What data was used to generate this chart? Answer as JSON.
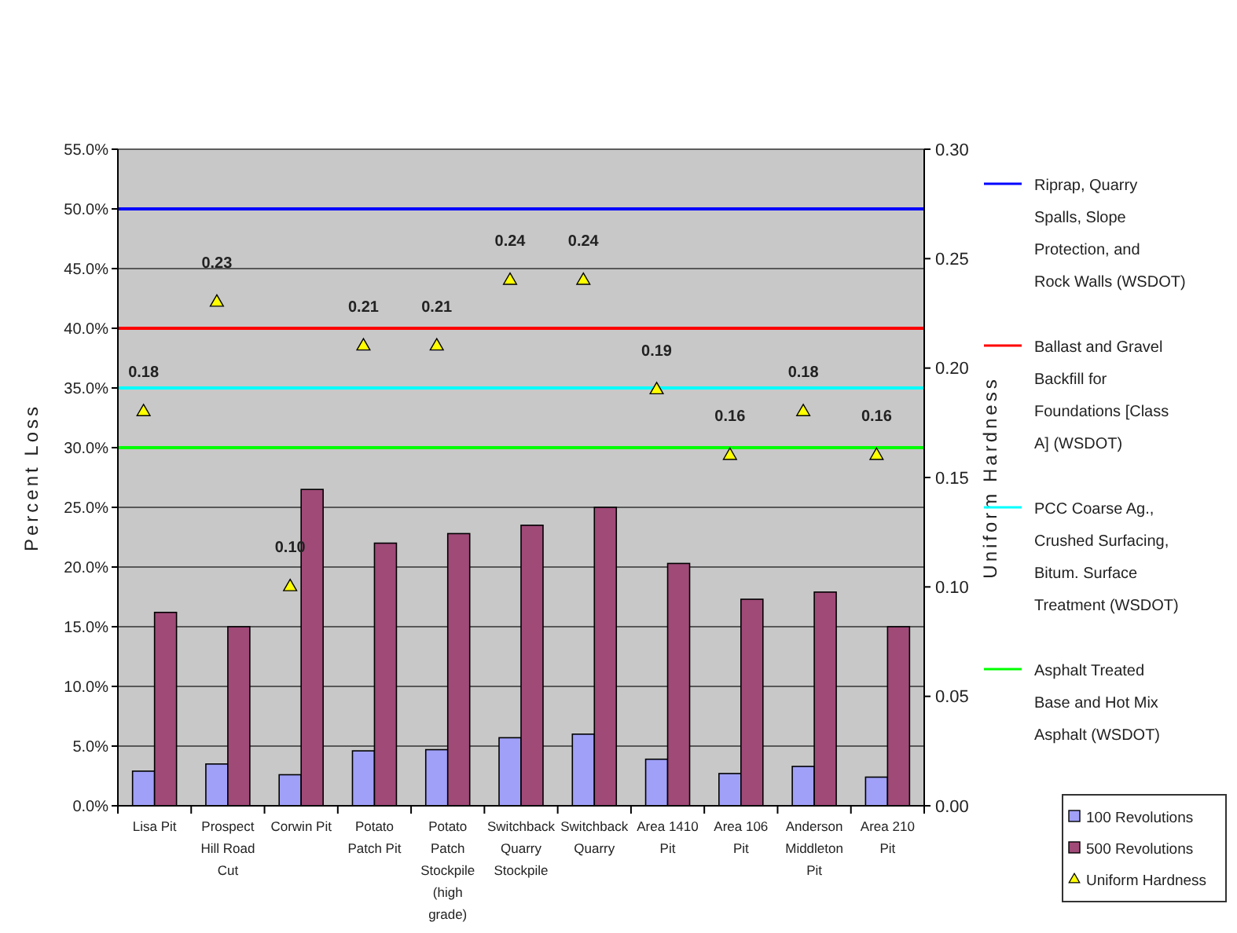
{
  "chart_data": {
    "type": "bar",
    "ylabel": "Percent Loss",
    "y2label": "Uniform Hardness",
    "categories": [
      "Lisa Pit",
      "Prospect Hill Road Cut",
      "Corwin Pit",
      "Potato Patch Pit",
      "Potato Patch Stockpile (high grade)",
      "Switchback Quarry Stockpile",
      "Switchback Quarry",
      "Area 1410 Pit",
      "Area 106 Pit",
      "Anderson Middleton Pit",
      "Area 210 Pit"
    ],
    "series": [
      {
        "name": "100 Revolutions",
        "color": "#a0a0f8",
        "values": [
          2.9,
          3.5,
          2.6,
          4.6,
          4.7,
          5.7,
          6.0,
          3.9,
          2.7,
          3.3,
          2.4
        ]
      },
      {
        "name": "500 Revolutions",
        "color": "#a04a78",
        "values": [
          16.2,
          15.0,
          26.5,
          22.0,
          22.8,
          23.5,
          25.0,
          20.3,
          17.3,
          17.9,
          15.0
        ]
      },
      {
        "name": "Uniform Hardness",
        "type": "scatter",
        "axis": "y2",
        "color": "#ffff00",
        "marker": "triangle",
        "values": [
          0.18,
          0.23,
          0.1,
          0.21,
          0.21,
          0.24,
          0.24,
          0.19,
          0.16,
          0.18,
          0.16
        ],
        "value_labels": [
          "0.18",
          "0.23",
          "0.10",
          "0.21",
          "0.21",
          "0.24",
          "0.24",
          "0.19",
          "0.16",
          "0.18",
          "0.16"
        ]
      }
    ],
    "ylim": [
      0,
      55
    ],
    "yticks": [
      {
        "value": 0,
        "label": "0.0%"
      },
      {
        "value": 5,
        "label": "5.0%"
      },
      {
        "value": 10,
        "label": "10.0%"
      },
      {
        "value": 15,
        "label": "15.0%"
      },
      {
        "value": 20,
        "label": "20.0%"
      },
      {
        "value": 25,
        "label": "25.0%"
      },
      {
        "value": 30,
        "label": "30.0%"
      },
      {
        "value": 35,
        "label": "35.0%"
      },
      {
        "value": 40,
        "label": "40.0%"
      },
      {
        "value": 45,
        "label": "45.0%"
      },
      {
        "value": 50,
        "label": "50.0%"
      },
      {
        "value": 55,
        "label": "55.0%"
      }
    ],
    "y2lim": [
      0,
      0.3
    ],
    "y2ticks": [
      {
        "value": 0,
        "label": "0.00"
      },
      {
        "value": 0.05,
        "label": "0.05"
      },
      {
        "value": 0.1,
        "label": "0.10"
      },
      {
        "value": 0.15,
        "label": "0.15"
      },
      {
        "value": 0.2,
        "label": "0.20"
      },
      {
        "value": 0.25,
        "label": "0.25"
      },
      {
        "value": 0.3,
        "label": "0.30"
      }
    ],
    "ref_lines": [
      {
        "axis": "y",
        "value": 50,
        "label": "Riprap, Quarry Spalls, Slope Protection, and Rock Walls (WSDOT)",
        "color": "#0000ff"
      },
      {
        "axis": "y",
        "value": 40,
        "label": "Ballast and Gravel Backfill for Foundations [Class A]  (WSDOT)",
        "color": "#ff0000"
      },
      {
        "axis": "y",
        "value": 35,
        "label": "PCC Coarse Ag., Crushed Surfacing, Bitum. Surface Treatment (WSDOT)",
        "color": "#00ffff"
      },
      {
        "axis": "y",
        "value": 30,
        "label": "Asphalt Treated Base and Hot Mix Asphalt (WSDOT)",
        "color": "#00ff00"
      }
    ],
    "grid": "y",
    "legend": "right"
  }
}
